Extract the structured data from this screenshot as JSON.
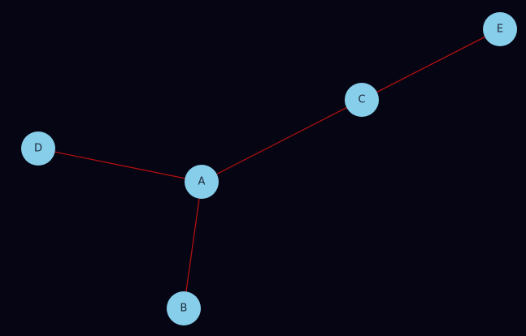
{
  "colors": {
    "background": "#050513",
    "node_fill": "#87ceeb",
    "edge_stroke": "#b01010",
    "label_text": "#1e2a3a"
  },
  "nodes": [
    {
      "id": "A",
      "label": "A"
    },
    {
      "id": "B",
      "label": "B"
    },
    {
      "id": "C",
      "label": "C"
    },
    {
      "id": "D",
      "label": "D"
    },
    {
      "id": "E",
      "label": "E"
    }
  ],
  "edges": [
    {
      "source": "A",
      "target": "C"
    },
    {
      "source": "C",
      "target": "E"
    },
    {
      "source": "A",
      "target": "D"
    },
    {
      "source": "A",
      "target": "B"
    }
  ]
}
